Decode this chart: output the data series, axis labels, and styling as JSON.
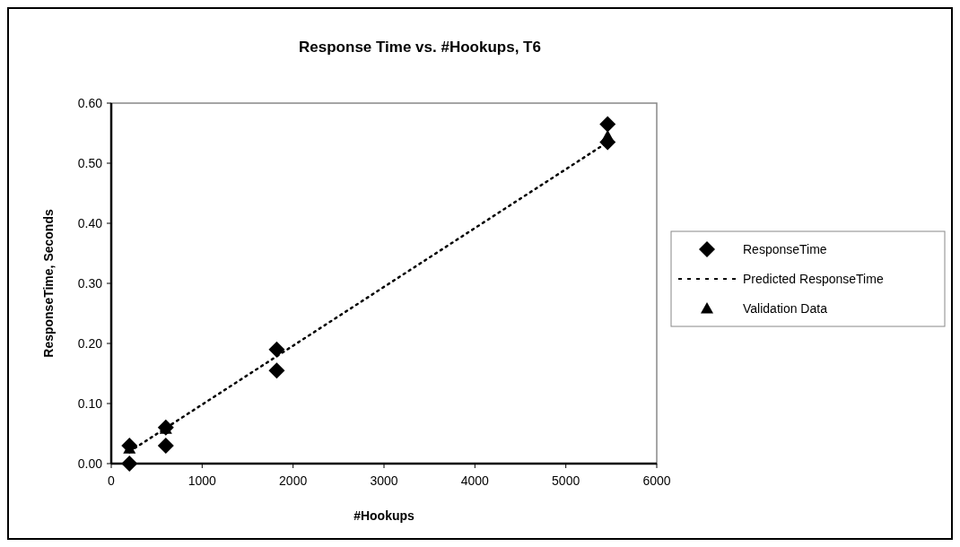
{
  "chart_data": {
    "type": "scatter",
    "title": "Response Time vs. #Hookups, T6",
    "xlabel": "#Hookups",
    "ylabel": "ResponseTime, Seconds",
    "xlim": [
      0,
      6000
    ],
    "xticks": [
      0,
      1000,
      2000,
      3000,
      4000,
      5000,
      6000
    ],
    "ylim": [
      0,
      0.6
    ],
    "yticks": [
      {
        "value": 0,
        "label": "0.00"
      },
      {
        "value": 0.1,
        "label": "0.10"
      },
      {
        "value": 0.2,
        "label": "0.20"
      },
      {
        "value": 0.3,
        "label": "0.30"
      },
      {
        "value": 0.4,
        "label": "0.40"
      },
      {
        "value": 0.5,
        "label": "0.50"
      },
      {
        "value": 0.6,
        "label": "0.60"
      }
    ],
    "grid": false,
    "legend": "right",
    "series": [
      {
        "name": "ResponseTime",
        "marker": "diamond",
        "color": "#000000",
        "x": [
          200,
          200,
          600,
          600,
          1820,
          1820,
          5460,
          5460
        ],
        "values": [
          0.03,
          0,
          0.06,
          0.03,
          0.19,
          0.155,
          0.565,
          0.535
        ]
      },
      {
        "name": "Predicted ResponseTime",
        "type": "line",
        "marker": "none",
        "line_style": "dotted",
        "color": "#000000",
        "x": [
          200,
          5460
        ],
        "values": [
          0.02,
          0.535
        ]
      },
      {
        "name": "Validation Data",
        "marker": "triangle",
        "color": "#000000",
        "x": [
          200,
          600,
          5460
        ],
        "values": [
          0.025,
          0.058,
          0.545
        ]
      }
    ]
  }
}
